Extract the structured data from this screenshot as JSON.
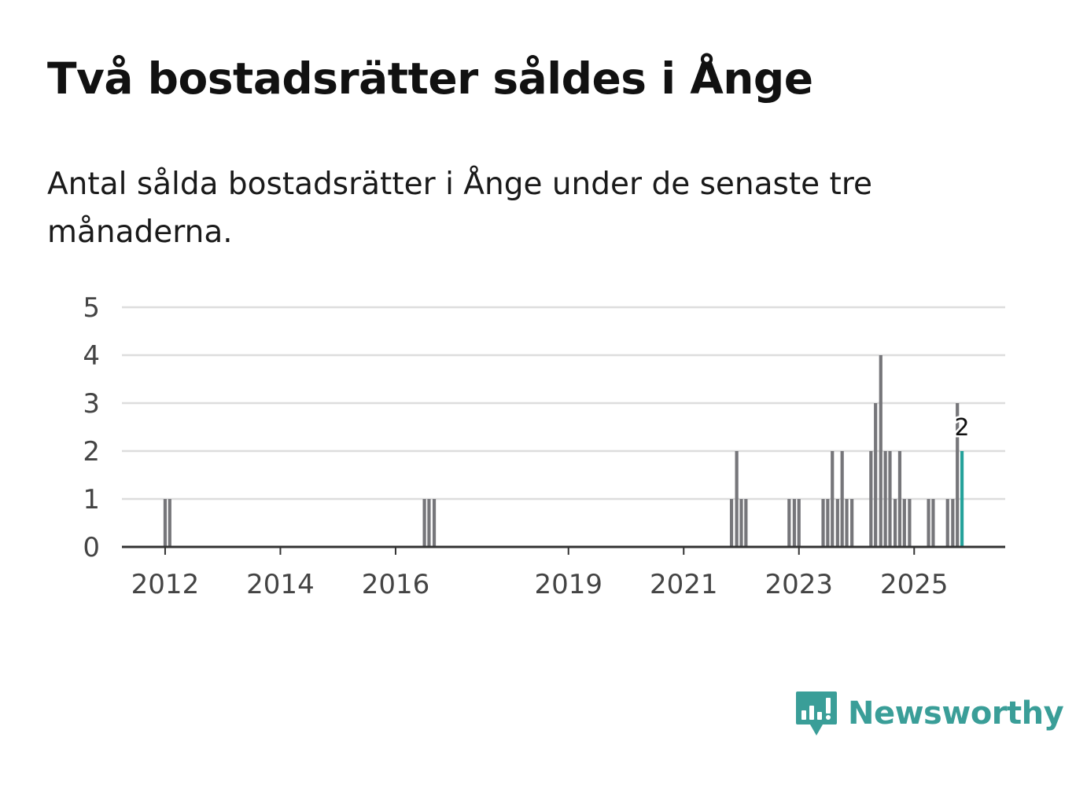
{
  "chart_data": {
    "type": "bar",
    "title": "Två bostadsrätter såldes i Ånge",
    "subtitle": "Antal sålda bostadsrätter i Ånge under de senaste tre månaderna.",
    "xlabel": "",
    "ylabel": "",
    "ylim": [
      0,
      5
    ],
    "yticks": [
      0,
      1,
      2,
      3,
      4,
      5
    ],
    "xtick_labels": [
      "2012",
      "2014",
      "2016",
      "2019",
      "2021",
      "2023",
      "2025"
    ],
    "xtick_years": [
      2012,
      2014,
      2016,
      2019,
      2021,
      2023,
      2025
    ],
    "x_range": [
      2011.25,
      2026.58
    ],
    "points": [
      {
        "period": "2012-01",
        "x": 2012.0,
        "value": 1
      },
      {
        "period": "2012-02",
        "x": 2012.08,
        "value": 1
      },
      {
        "period": "2016-06",
        "x": 2016.5,
        "value": 1
      },
      {
        "period": "2016-07",
        "x": 2016.58,
        "value": 1
      },
      {
        "period": "2016-08",
        "x": 2016.67,
        "value": 1
      },
      {
        "period": "2021-11",
        "x": 2021.83,
        "value": 1
      },
      {
        "period": "2021-12",
        "x": 2021.92,
        "value": 2
      },
      {
        "period": "2022-01",
        "x": 2022.0,
        "value": 1
      },
      {
        "period": "2022-02",
        "x": 2022.08,
        "value": 1
      },
      {
        "period": "2022-11",
        "x": 2022.83,
        "value": 1
      },
      {
        "period": "2022-12",
        "x": 2022.92,
        "value": 1
      },
      {
        "period": "2023-01",
        "x": 2023.0,
        "value": 1
      },
      {
        "period": "2023-05",
        "x": 2023.42,
        "value": 1
      },
      {
        "period": "2023-06",
        "x": 2023.5,
        "value": 1
      },
      {
        "period": "2023-07",
        "x": 2023.58,
        "value": 2
      },
      {
        "period": "2023-08",
        "x": 2023.67,
        "value": 1
      },
      {
        "period": "2023-09",
        "x": 2023.75,
        "value": 2
      },
      {
        "period": "2023-10",
        "x": 2023.83,
        "value": 1
      },
      {
        "period": "2023-11",
        "x": 2023.92,
        "value": 1
      },
      {
        "period": "2024-03",
        "x": 2024.25,
        "value": 2
      },
      {
        "period": "2024-04",
        "x": 2024.33,
        "value": 3
      },
      {
        "period": "2024-05",
        "x": 2024.42,
        "value": 4
      },
      {
        "period": "2024-06",
        "x": 2024.5,
        "value": 2
      },
      {
        "period": "2024-07",
        "x": 2024.58,
        "value": 2
      },
      {
        "period": "2024-08",
        "x": 2024.67,
        "value": 1
      },
      {
        "period": "2024-09",
        "x": 2024.75,
        "value": 2
      },
      {
        "period": "2024-10",
        "x": 2024.83,
        "value": 1
      },
      {
        "period": "2024-11",
        "x": 2024.92,
        "value": 1
      },
      {
        "period": "2025-03",
        "x": 2025.25,
        "value": 1
      },
      {
        "period": "2025-04",
        "x": 2025.33,
        "value": 1
      },
      {
        "period": "2025-07",
        "x": 2025.58,
        "value": 1
      },
      {
        "period": "2025-08",
        "x": 2025.67,
        "value": 1
      },
      {
        "period": "2025-09",
        "x": 2025.75,
        "value": 3
      },
      {
        "period": "2025-10",
        "x": 2025.83,
        "value": 2,
        "highlight": true
      }
    ],
    "highlight_label": "2",
    "colors": {
      "bar": "#76767a",
      "highlight": "#25a29b",
      "grid": "#dddddd",
      "axis": "#333333",
      "tick_text": "#444444"
    }
  },
  "brand": {
    "name": "Newsworthy",
    "color": "#3a9e98"
  }
}
